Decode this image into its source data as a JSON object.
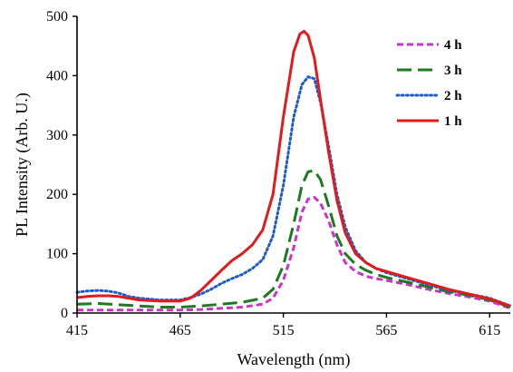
{
  "chart_data": {
    "type": "line",
    "title": "",
    "xlabel": "Wavelength (nm)",
    "ylabel": "PL Intensity (Arb. U.)",
    "xlim": [
      415,
      625
    ],
    "ylim": [
      0,
      500
    ],
    "xticks": [
      "415",
      "465",
      "515",
      "565",
      "615"
    ],
    "yticks": [
      "0",
      "100",
      "200",
      "300",
      "400",
      "500"
    ],
    "grid": false,
    "legend_position": "top-right",
    "series": [
      {
        "name": "4 h",
        "color": "#cc33cc",
        "style": "dashed",
        "x": [
          415,
          425,
          435,
          445,
          455,
          465,
          475,
          485,
          495,
          505,
          510,
          515,
          520,
          524,
          527,
          530,
          533,
          537,
          541,
          545,
          550,
          555,
          560,
          565,
          575,
          585,
          595,
          605,
          615,
          625
        ],
        "y": [
          5,
          5,
          5,
          5,
          5,
          5,
          6,
          8,
          10,
          15,
          25,
          55,
          110,
          170,
          192,
          195,
          185,
          155,
          115,
          85,
          70,
          62,
          58,
          55,
          48,
          40,
          33,
          27,
          20,
          8
        ]
      },
      {
        "name": "3 h",
        "color": "#1e7a1e",
        "style": "long-dash",
        "x": [
          415,
          425,
          435,
          445,
          455,
          465,
          475,
          485,
          495,
          505,
          510,
          515,
          520,
          524,
          527,
          530,
          533,
          537,
          541,
          545,
          550,
          555,
          560,
          565,
          575,
          585,
          595,
          605,
          615,
          625
        ],
        "y": [
          15,
          16,
          14,
          12,
          10,
          10,
          12,
          15,
          18,
          25,
          40,
          80,
          150,
          215,
          238,
          240,
          225,
          180,
          130,
          100,
          82,
          72,
          65,
          60,
          52,
          44,
          36,
          30,
          22,
          10
        ]
      },
      {
        "name": "2 h",
        "color": "#1f5bd0",
        "style": "dotted",
        "x": [
          415,
          420,
          425,
          430,
          435,
          440,
          445,
          455,
          465,
          470,
          475,
          480,
          485,
          490,
          495,
          500,
          505,
          510,
          515,
          520,
          524,
          527,
          530,
          533,
          537,
          541,
          545,
          550,
          555,
          560,
          565,
          575,
          585,
          595,
          605,
          615,
          625
        ],
        "y": [
          35,
          37,
          38,
          37,
          34,
          28,
          25,
          22,
          22,
          26,
          32,
          40,
          50,
          58,
          65,
          75,
          90,
          130,
          215,
          330,
          385,
          398,
          395,
          355,
          280,
          200,
          145,
          105,
          85,
          75,
          68,
          58,
          48,
          38,
          32,
          25,
          12
        ]
      },
      {
        "name": "1 h",
        "color": "#e11b1b",
        "style": "solid",
        "x": [
          415,
          420,
          425,
          430,
          435,
          440,
          445,
          455,
          465,
          470,
          475,
          480,
          485,
          490,
          495,
          500,
          505,
          510,
          515,
          520,
          523,
          525,
          527,
          530,
          533,
          537,
          541,
          545,
          550,
          555,
          560,
          565,
          575,
          585,
          595,
          605,
          615,
          625
        ],
        "y": [
          26,
          28,
          29,
          29,
          28,
          25,
          22,
          20,
          20,
          25,
          38,
          55,
          72,
          88,
          100,
          115,
          140,
          200,
          330,
          440,
          470,
          475,
          468,
          430,
          360,
          270,
          190,
          135,
          100,
          85,
          75,
          70,
          60,
          50,
          40,
          32,
          24,
          12
        ]
      }
    ]
  }
}
